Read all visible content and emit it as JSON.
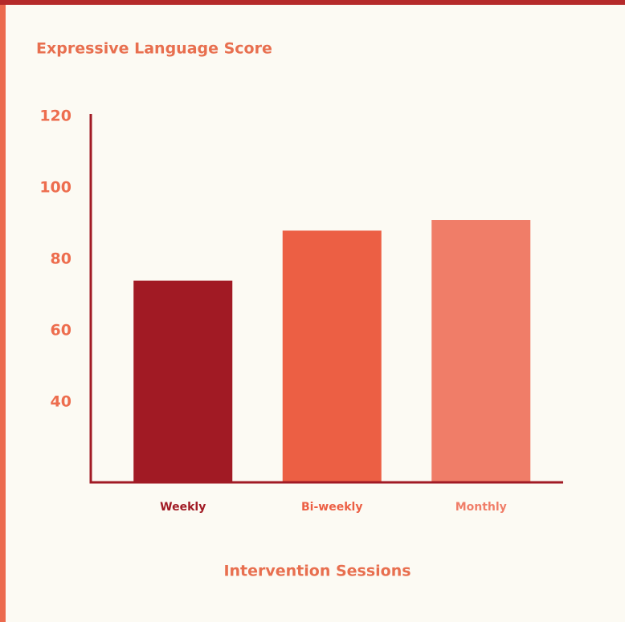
{
  "chart_data": {
    "type": "bar",
    "title": "Expressive Language Score",
    "x_label": "Intervention Sessions",
    "categories": [
      "Weekly",
      "Bi-weekly",
      "Monthly"
    ],
    "values": [
      74,
      88,
      91
    ],
    "colors": [
      "#a11a24",
      "#ec5f44",
      "#f07d68"
    ],
    "ylim": [
      17.5,
      120
    ],
    "yticks": [
      40,
      60,
      80,
      100,
      120
    ],
    "grid": false
  }
}
